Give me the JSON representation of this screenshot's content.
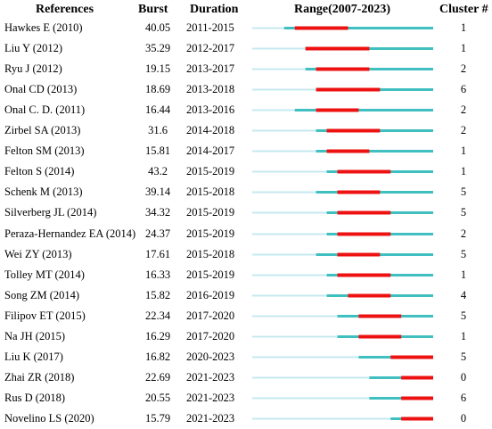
{
  "chart_data": {
    "type": "table",
    "headers": {
      "references": "References",
      "burst": "Burst",
      "duration": "Duration",
      "range": "Range(2007-2023)",
      "cluster": "Cluster #"
    },
    "range_start": 2007,
    "range_end": 2023,
    "colors": {
      "timeline": "#c5e8ef",
      "active": "#3fbfbf",
      "burst": "#ee1111"
    },
    "rows": [
      {
        "reference": "Hawkes E (2010)",
        "burst": "40.05",
        "duration": "2011-2015",
        "active_start": 2010,
        "burst_start": 2011,
        "burst_end": 2015,
        "cluster": "1"
      },
      {
        "reference": "Liu Y (2012)",
        "burst": "35.29",
        "duration": "2012-2017",
        "active_start": 2012,
        "burst_start": 2012,
        "burst_end": 2017,
        "cluster": "1"
      },
      {
        "reference": "Ryu J (2012)",
        "burst": "19.15",
        "duration": "2013-2017",
        "active_start": 2012,
        "burst_start": 2013,
        "burst_end": 2017,
        "cluster": "2"
      },
      {
        "reference": "Onal CD (2013)",
        "burst": "18.69",
        "duration": "2013-2018",
        "active_start": 2013,
        "burst_start": 2013,
        "burst_end": 2018,
        "cluster": "6"
      },
      {
        "reference": "Onal C. D. (2011)",
        "burst": "16.44",
        "duration": "2013-2016",
        "active_start": 2011,
        "burst_start": 2013,
        "burst_end": 2016,
        "cluster": "2"
      },
      {
        "reference": "Zirbel SA (2013)",
        "burst": "31.6",
        "duration": "2014-2018",
        "active_start": 2013,
        "burst_start": 2014,
        "burst_end": 2018,
        "cluster": "2"
      },
      {
        "reference": "Felton SM (2013)",
        "burst": "15.81",
        "duration": "2014-2017",
        "active_start": 2013,
        "burst_start": 2014,
        "burst_end": 2017,
        "cluster": "1"
      },
      {
        "reference": "Felton S (2014)",
        "burst": "43.2",
        "duration": "2015-2019",
        "active_start": 2014,
        "burst_start": 2015,
        "burst_end": 2019,
        "cluster": "1"
      },
      {
        "reference": "Schenk M (2013)",
        "burst": "39.14",
        "duration": "2015-2018",
        "active_start": 2013,
        "burst_start": 2015,
        "burst_end": 2018,
        "cluster": "5"
      },
      {
        "reference": "Silverberg JL (2014)",
        "burst": "34.32",
        "duration": "2015-2019",
        "active_start": 2014,
        "burst_start": 2015,
        "burst_end": 2019,
        "cluster": "5"
      },
      {
        "reference": "Peraza-Hernandez EA (2014)",
        "burst": "24.37",
        "duration": "2015-2019",
        "active_start": 2014,
        "burst_start": 2015,
        "burst_end": 2019,
        "cluster": "2"
      },
      {
        "reference": "Wei ZY (2013)",
        "burst": "17.61",
        "duration": "2015-2018",
        "active_start": 2013,
        "burst_start": 2015,
        "burst_end": 2018,
        "cluster": "5"
      },
      {
        "reference": "Tolley MT (2014)",
        "burst": "16.33",
        "duration": "2015-2019",
        "active_start": 2014,
        "burst_start": 2015,
        "burst_end": 2019,
        "cluster": "1"
      },
      {
        "reference": "Song ZM (2014)",
        "burst": "15.82",
        "duration": "2016-2019",
        "active_start": 2014,
        "burst_start": 2016,
        "burst_end": 2019,
        "cluster": "4"
      },
      {
        "reference": "Filipov ET (2015)",
        "burst": "22.34",
        "duration": "2017-2020",
        "active_start": 2015,
        "burst_start": 2017,
        "burst_end": 2020,
        "cluster": "5"
      },
      {
        "reference": "Na JH (2015)",
        "burst": "16.29",
        "duration": "2017-2020",
        "active_start": 2015,
        "burst_start": 2017,
        "burst_end": 2020,
        "cluster": "1"
      },
      {
        "reference": "Liu K (2017)",
        "burst": "16.82",
        "duration": "2020-2023",
        "active_start": 2017,
        "burst_start": 2020,
        "burst_end": 2023,
        "cluster": "5"
      },
      {
        "reference": "Zhai ZR (2018)",
        "burst": "22.69",
        "duration": "2021-2023",
        "active_start": 2018,
        "burst_start": 2021,
        "burst_end": 2023,
        "cluster": "0"
      },
      {
        "reference": "Rus D (2018)",
        "burst": "20.55",
        "duration": "2021-2023",
        "active_start": 2018,
        "burst_start": 2021,
        "burst_end": 2023,
        "cluster": "6"
      },
      {
        "reference": "Novelino LS (2020)",
        "burst": "15.79",
        "duration": "2021-2023",
        "active_start": 2020,
        "burst_start": 2021,
        "burst_end": 2023,
        "cluster": "0"
      }
    ]
  }
}
